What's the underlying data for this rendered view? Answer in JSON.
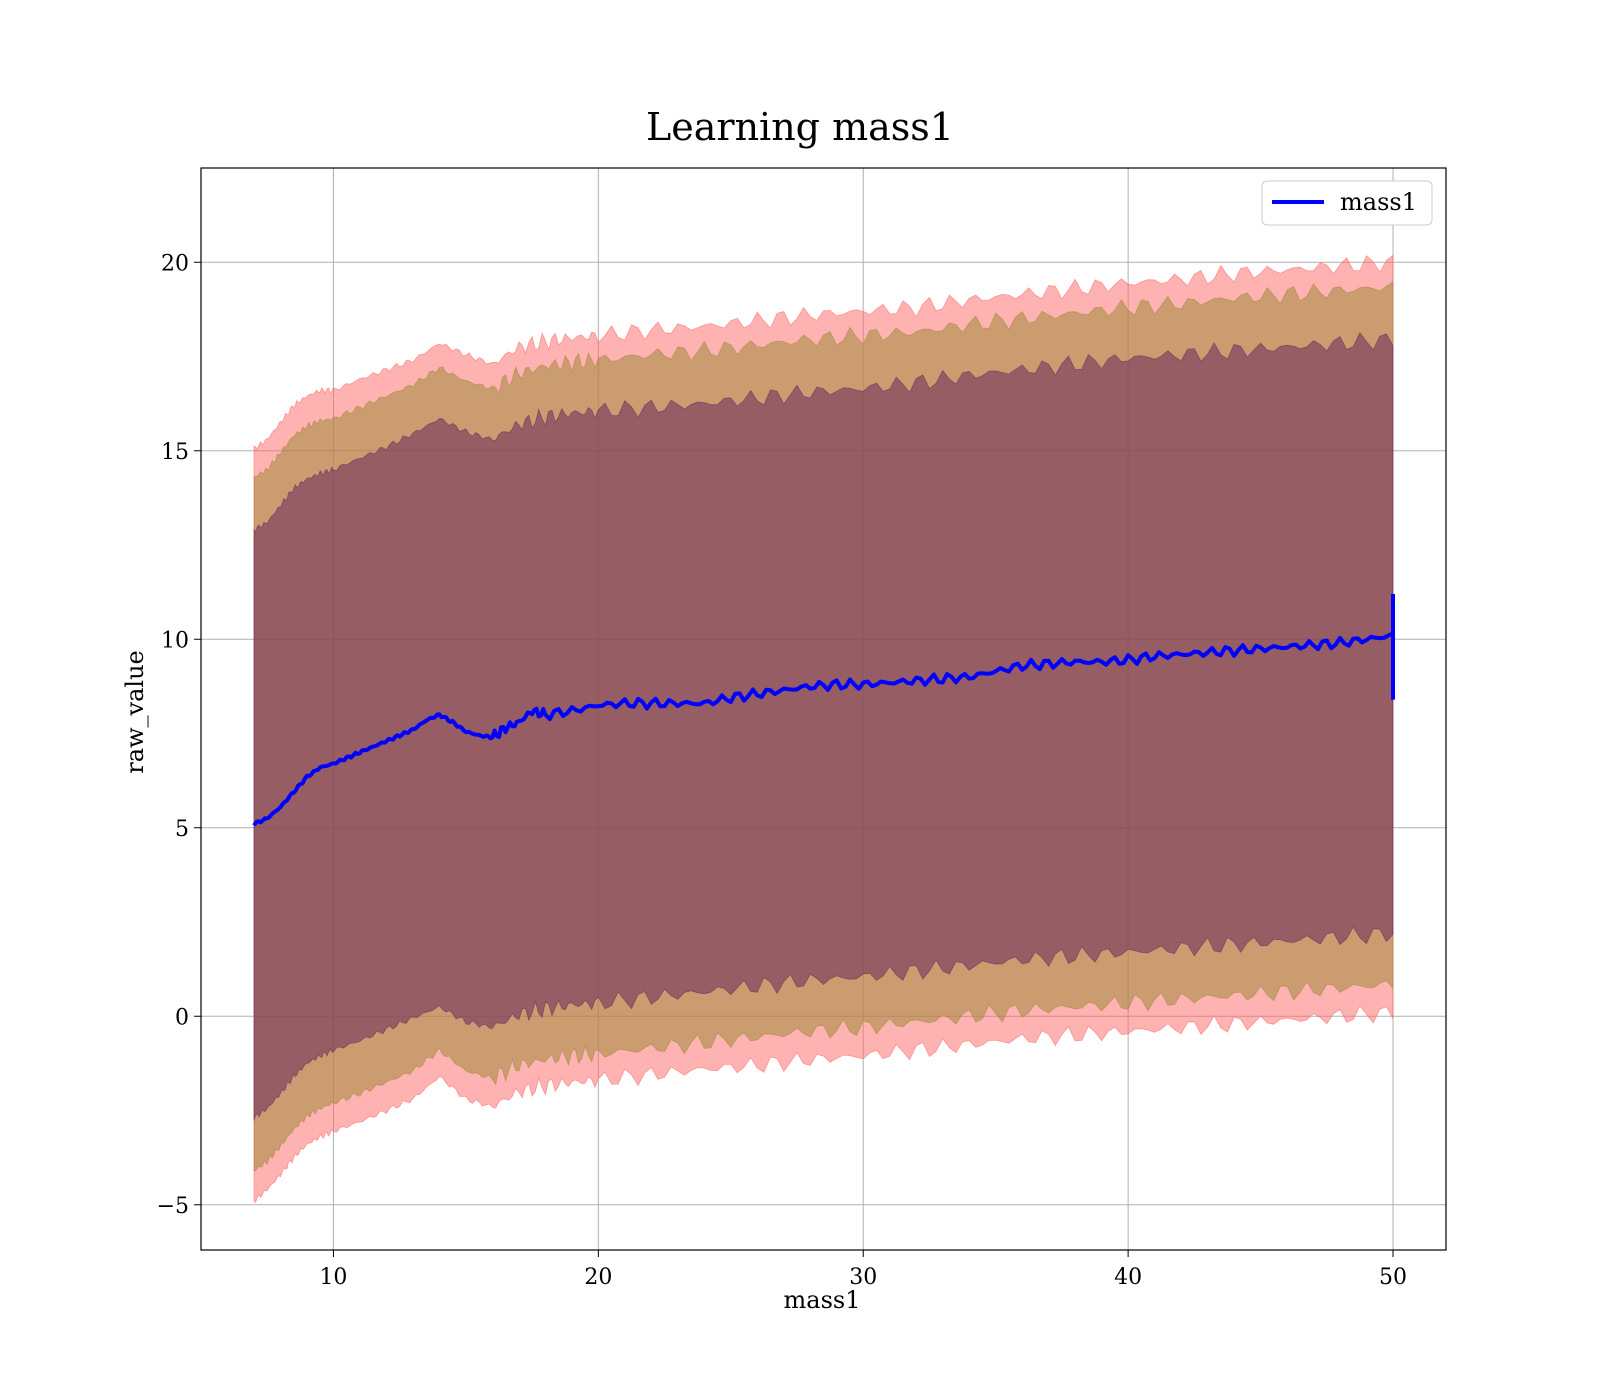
{
  "chart_data": {
    "type": "line",
    "title": "Learning mass1",
    "xlabel": "mass1",
    "ylabel": "raw_value",
    "xlim": [
      5,
      52
    ],
    "ylim": [
      -6.2,
      22.5
    ],
    "xticks": [
      10,
      20,
      30,
      40,
      50
    ],
    "yticks": [
      -5,
      0,
      5,
      10,
      15,
      20
    ],
    "xtick_labels": [
      "10",
      "20",
      "30",
      "40",
      "50"
    ],
    "ytick_labels": [
      "−5",
      "0",
      "5",
      "10",
      "15",
      "20"
    ],
    "grid": true,
    "legend": {
      "position": "top-right",
      "entries": [
        "mass1"
      ]
    },
    "series": [
      {
        "name": "mass1",
        "color": "#0000ff",
        "x": [
          7,
          7.5,
          8,
          8.5,
          9,
          9.5,
          10,
          10.5,
          11,
          11.5,
          12,
          12.5,
          13,
          13.5,
          14,
          14.5,
          15,
          15.5,
          16,
          16.5,
          17,
          17.5,
          18,
          19,
          20,
          21,
          22,
          23,
          24,
          25,
          26,
          27,
          28,
          29,
          30,
          31,
          32,
          33,
          34,
          35,
          36,
          37,
          38,
          39,
          40,
          41,
          42,
          43,
          44,
          45,
          46,
          47,
          48,
          49,
          50
        ],
        "y": [
          5.1,
          5.25,
          5.55,
          5.95,
          6.35,
          6.6,
          6.7,
          6.85,
          7.0,
          7.15,
          7.3,
          7.45,
          7.6,
          7.85,
          8.0,
          7.8,
          7.55,
          7.45,
          7.4,
          7.65,
          7.8,
          8.1,
          8.0,
          8.1,
          8.25,
          8.3,
          8.3,
          8.3,
          8.3,
          8.45,
          8.55,
          8.65,
          8.75,
          8.8,
          8.8,
          8.85,
          8.9,
          8.95,
          9.0,
          9.15,
          9.3,
          9.35,
          9.4,
          9.4,
          9.45,
          9.55,
          9.6,
          9.65,
          9.7,
          9.75,
          9.8,
          9.85,
          9.9,
          10.0,
          10.1
        ]
      }
    ],
    "final_spike": {
      "x": 50,
      "y_min": 8.4,
      "y_max": 11.2
    },
    "bands": [
      {
        "name": "outer band",
        "color": "#ff6666",
        "upper_x": [
          7,
          7.5,
          8,
          8.5,
          9,
          9.5,
          10,
          11,
          12,
          13,
          14,
          15,
          16,
          17,
          18,
          19,
          20,
          22,
          24,
          26,
          28,
          30,
          32,
          34,
          36,
          38,
          40,
          42,
          44,
          46,
          48,
          50
        ],
        "upper_y": [
          15.05,
          15.3,
          15.75,
          16.2,
          16.45,
          16.6,
          16.6,
          16.9,
          17.15,
          17.4,
          17.85,
          17.55,
          17.3,
          17.75,
          17.9,
          18.0,
          18.05,
          18.2,
          18.3,
          18.45,
          18.6,
          18.7,
          18.8,
          19.0,
          19.15,
          19.3,
          19.45,
          19.55,
          19.7,
          19.8,
          19.9,
          20.0
        ],
        "lower_y": [
          -4.9,
          -4.6,
          -4.2,
          -3.75,
          -3.4,
          -3.2,
          -3.05,
          -2.8,
          -2.5,
          -2.2,
          -1.6,
          -2.2,
          -2.4,
          -2.0,
          -1.85,
          -1.75,
          -1.7,
          -1.55,
          -1.4,
          -1.3,
          -1.15,
          -1.05,
          -0.9,
          -0.75,
          -0.6,
          -0.5,
          -0.4,
          -0.3,
          -0.2,
          -0.1,
          0.0,
          0.1
        ]
      },
      {
        "name": "middle band",
        "color": "#a08a3a",
        "upper_x": [
          7,
          7.5,
          8,
          8.5,
          9,
          9.5,
          10,
          11,
          12,
          13,
          14,
          15,
          16,
          17,
          18,
          19,
          20,
          22,
          24,
          26,
          28,
          30,
          32,
          34,
          36,
          38,
          40,
          42,
          44,
          46,
          48,
          50
        ],
        "upper_y": [
          14.3,
          14.5,
          14.95,
          15.4,
          15.65,
          15.8,
          15.85,
          16.15,
          16.45,
          16.75,
          17.2,
          16.85,
          16.65,
          17.05,
          17.25,
          17.35,
          17.4,
          17.55,
          17.65,
          17.8,
          17.95,
          18.05,
          18.15,
          18.35,
          18.5,
          18.65,
          18.8,
          18.9,
          19.05,
          19.15,
          19.25,
          19.35
        ],
        "lower_y": [
          -4.1,
          -3.85,
          -3.45,
          -3.0,
          -2.65,
          -2.45,
          -2.3,
          -2.05,
          -1.75,
          -1.45,
          -0.9,
          -1.45,
          -1.65,
          -1.3,
          -1.15,
          -1.05,
          -1.0,
          -0.85,
          -0.7,
          -0.55,
          -0.4,
          -0.3,
          -0.15,
          0.0,
          0.15,
          0.25,
          0.35,
          0.45,
          0.55,
          0.65,
          0.75,
          0.85
        ]
      },
      {
        "name": "inner band",
        "color": "#6b2a5c",
        "upper_x": [
          7,
          7.5,
          8,
          8.5,
          9,
          9.5,
          10,
          11,
          12,
          13,
          14,
          15,
          16,
          17,
          18,
          19,
          20,
          22,
          24,
          26,
          28,
          30,
          32,
          34,
          36,
          38,
          40,
          42,
          44,
          46,
          48,
          50
        ],
        "upper_y": [
          12.9,
          13.1,
          13.55,
          14.0,
          14.25,
          14.4,
          14.5,
          14.8,
          15.1,
          15.45,
          15.85,
          15.5,
          15.3,
          15.7,
          15.9,
          16.0,
          16.05,
          16.15,
          16.25,
          16.4,
          16.55,
          16.65,
          16.8,
          17.0,
          17.15,
          17.3,
          17.45,
          17.55,
          17.65,
          17.75,
          17.85,
          17.95
        ],
        "lower_y": [
          -2.7,
          -2.45,
          -2.05,
          -1.6,
          -1.25,
          -1.05,
          -0.9,
          -0.65,
          -0.35,
          -0.05,
          0.25,
          -0.15,
          -0.3,
          0.05,
          0.2,
          0.3,
          0.35,
          0.5,
          0.65,
          0.8,
          0.95,
          1.05,
          1.2,
          1.35,
          1.5,
          1.6,
          1.7,
          1.8,
          1.9,
          2.0,
          2.1,
          2.2
        ]
      }
    ]
  }
}
